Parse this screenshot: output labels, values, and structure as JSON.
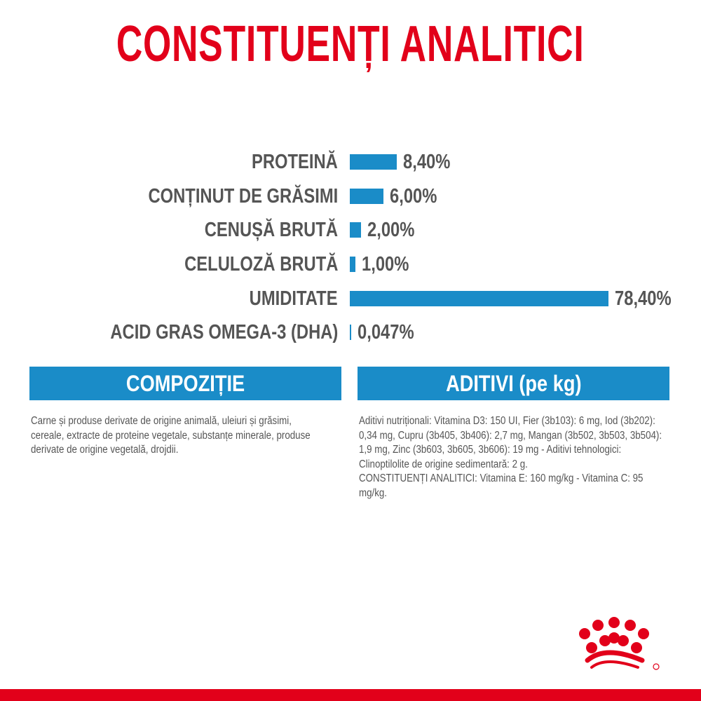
{
  "title": "CONSTITUENȚI ANALITICI",
  "colors": {
    "brand_red": "#e2001a",
    "bar_blue": "#1a8cc8",
    "text_grey": "#555555"
  },
  "chart_data": {
    "type": "bar",
    "orientation": "horizontal",
    "categories": [
      "PROTEINĂ",
      "CONȚINUT DE GRĂSIMI",
      "CENUȘĂ BRUTĂ",
      "CELULOZĂ BRUTĂ",
      "UMIDITATE",
      "ACID GRAS OMEGA-3 (DHA)"
    ],
    "values": [
      8.4,
      6.0,
      2.0,
      1.0,
      78.4,
      0.047
    ],
    "labels": [
      "8,40%",
      "6,00%",
      "2,00%",
      "1,00%",
      "78,40%",
      "0,047%"
    ],
    "unit": "%"
  },
  "composition": {
    "header": "COMPOZIȚIE",
    "text": "Carne și produse derivate de origine animală, uleiuri și grăsimi, cereale, extracte de proteine vegetale, substanțe minerale, produse derivate de origine vegetală, drojdii."
  },
  "additives": {
    "header": "ADITIVI (pe kg)",
    "text1": "Aditivi nutriționali: Vitamina D3: 150 UI, Fier (3b103): 6 mg, Iod (3b202): 0,34 mg, Cupru (3b405, 3b406): 2,7 mg, Mangan (3b502, 3b503, 3b504): 1,9 mg, Zinc (3b603, 3b605, 3b606): 19 mg - Aditivi tehnologici: Clinoptilolite de origine sedimentară: 2 g.",
    "text2": "CONSTITUENȚI ANALITICI: Vitamina E: 160 mg/kg - Vitamina C: 95 mg/kg."
  },
  "logo": {
    "icon": "royal-canin-crown-icon"
  }
}
